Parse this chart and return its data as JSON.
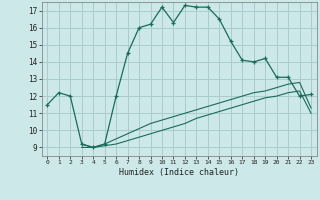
{
  "xlabel": "Humidex (Indice chaleur)",
  "xlim": [
    -0.5,
    23.5
  ],
  "ylim": [
    8.5,
    17.5
  ],
  "xticks": [
    0,
    1,
    2,
    3,
    4,
    5,
    6,
    7,
    8,
    9,
    10,
    11,
    12,
    13,
    14,
    15,
    16,
    17,
    18,
    19,
    20,
    21,
    22,
    23
  ],
  "yticks": [
    9,
    10,
    11,
    12,
    13,
    14,
    15,
    16,
    17
  ],
  "bg_color": "#cce8e8",
  "grid_color": "#aacccc",
  "line_color": "#1a6b5a",
  "line1_x": [
    0,
    1,
    2,
    3,
    4,
    5,
    6,
    7,
    8,
    9,
    10,
    11,
    12,
    13,
    14,
    15,
    16,
    17,
    18,
    19,
    20,
    21,
    22,
    23
  ],
  "line1_y": [
    11.5,
    12.2,
    12.0,
    9.2,
    9.0,
    9.2,
    12.0,
    14.5,
    16.0,
    16.2,
    17.2,
    16.3,
    17.3,
    17.2,
    17.2,
    16.5,
    15.2,
    14.1,
    14.0,
    14.2,
    13.1,
    13.1,
    12.0,
    12.1
  ],
  "line2_x": [
    3,
    4,
    5,
    6,
    7,
    8,
    9,
    10,
    11,
    12,
    13,
    14,
    15,
    16,
    17,
    18,
    19,
    20,
    21,
    22,
    23
  ],
  "line2_y": [
    9.2,
    9.0,
    9.2,
    9.5,
    9.8,
    10.1,
    10.4,
    10.6,
    10.8,
    11.0,
    11.2,
    11.4,
    11.6,
    11.8,
    12.0,
    12.2,
    12.3,
    12.5,
    12.7,
    12.8,
    11.3
  ],
  "line3_x": [
    3,
    4,
    5,
    6,
    7,
    8,
    9,
    10,
    11,
    12,
    13,
    14,
    15,
    16,
    17,
    18,
    19,
    20,
    21,
    22,
    23
  ],
  "line3_y": [
    9.0,
    9.0,
    9.1,
    9.2,
    9.4,
    9.6,
    9.8,
    10.0,
    10.2,
    10.4,
    10.7,
    10.9,
    11.1,
    11.3,
    11.5,
    11.7,
    11.9,
    12.0,
    12.2,
    12.3,
    11.0
  ]
}
